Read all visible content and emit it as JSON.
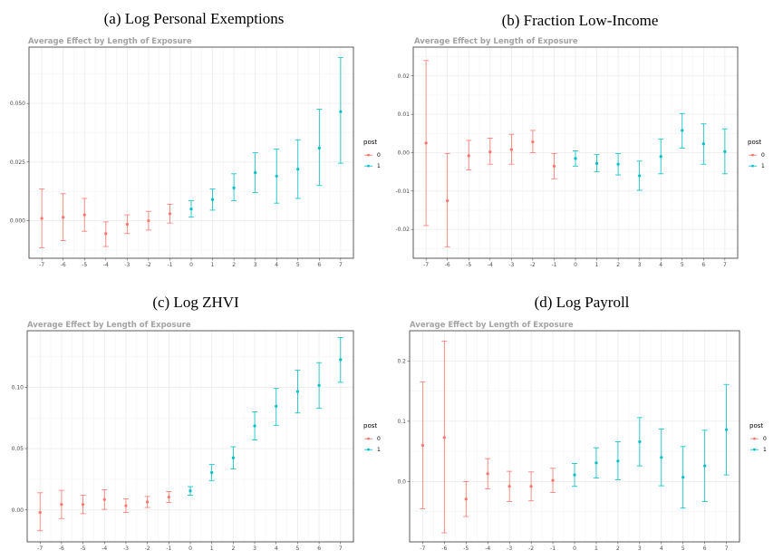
{
  "colors": {
    "pre": "#F8766D",
    "post": "#00BFC4"
  },
  "chart_data": [
    {
      "type": "scatter",
      "title": "(a)  Log Personal Exemptions",
      "subtitle": "Average Effect by Length of Exposure",
      "legend": {
        "title": "post",
        "labels": [
          "0",
          "1"
        ],
        "position": "right"
      },
      "grid": true,
      "x": [
        -7,
        -6,
        -5,
        -4,
        -3,
        -2,
        -1,
        0,
        1,
        2,
        3,
        4,
        5,
        6,
        7
      ],
      "xlim": [
        -7.6,
        7.6
      ],
      "ylim": [
        -0.016,
        0.074
      ],
      "yticks": [
        0.0,
        0.025,
        0.05
      ],
      "ytick_labels": [
        "0.000",
        "0.025",
        "0.050"
      ],
      "series": [
        {
          "name": "0",
          "x": [
            -7,
            -6,
            -5,
            -4,
            -3,
            -2,
            -1
          ],
          "y": [
            0.001,
            0.0015,
            0.0025,
            -0.0055,
            -0.0015,
            0.0,
            0.003
          ],
          "lo": [
            -0.0115,
            -0.0085,
            -0.0045,
            -0.011,
            -0.0055,
            -0.004,
            -0.001
          ],
          "hi": [
            0.0135,
            0.0115,
            0.0095,
            -0.0005,
            0.0025,
            0.004,
            0.007
          ]
        },
        {
          "name": "1",
          "x": [
            0,
            1,
            2,
            3,
            4,
            5,
            6,
            7
          ],
          "y": [
            0.005,
            0.009,
            0.014,
            0.0205,
            0.019,
            0.022,
            0.031,
            0.0465
          ],
          "lo": [
            0.0015,
            0.0045,
            0.0085,
            0.012,
            0.0075,
            0.0095,
            0.015,
            0.0245
          ],
          "hi": [
            0.0085,
            0.0135,
            0.02,
            0.029,
            0.0305,
            0.0345,
            0.0475,
            0.0695
          ]
        }
      ]
    },
    {
      "type": "scatter",
      "title": "(b)  Fraction Low-Income",
      "subtitle": "Average Effect by Length of Exposure",
      "legend": {
        "title": "post",
        "labels": [
          "0",
          "1"
        ],
        "position": "right"
      },
      "grid": true,
      "x": [
        -7,
        -6,
        -5,
        -4,
        -3,
        -2,
        -1,
        0,
        1,
        2,
        3,
        4,
        5,
        6,
        7
      ],
      "xlim": [
        -7.6,
        7.6
      ],
      "ylim": [
        -0.0275,
        0.0275
      ],
      "yticks": [
        -0.02,
        -0.01,
        0.0,
        0.01,
        0.02
      ],
      "ytick_labels": [
        "-0.02",
        "-0.01",
        "0.00",
        "0.01",
        "0.02"
      ],
      "series": [
        {
          "name": "0",
          "x": [
            -7,
            -6,
            -5,
            -4,
            -3,
            -2,
            -1
          ],
          "y": [
            0.0025,
            -0.0125,
            -0.0008,
            0.0002,
            0.0008,
            0.0028,
            -0.0035
          ],
          "lo": [
            -0.019,
            -0.0245,
            -0.0045,
            -0.003,
            -0.003,
            0.0,
            -0.0068
          ],
          "hi": [
            0.024,
            -0.0002,
            0.0032,
            0.0038,
            0.0048,
            0.0058,
            -0.0002
          ]
        },
        {
          "name": "1",
          "x": [
            0,
            1,
            2,
            3,
            4,
            5,
            6,
            7
          ],
          "y": [
            -0.0015,
            -0.0028,
            -0.003,
            -0.006,
            -0.001,
            0.0058,
            0.0023,
            0.0003
          ],
          "lo": [
            -0.0035,
            -0.005,
            -0.0058,
            -0.0098,
            -0.0055,
            0.0012,
            -0.003,
            -0.0055
          ],
          "hi": [
            0.0005,
            -0.0005,
            -0.0002,
            -0.0022,
            0.0035,
            0.0102,
            0.0075,
            0.0062
          ]
        }
      ]
    },
    {
      "type": "scatter",
      "title": "(c)  Log ZHVI",
      "subtitle": "Average Effect by Length of Exposure",
      "legend": {
        "title": "post",
        "labels": [
          "0",
          "1"
        ],
        "position": "right"
      },
      "grid": true,
      "x": [
        -7,
        -6,
        -5,
        -4,
        -3,
        -2,
        -1,
        0,
        1,
        2,
        3,
        4,
        5,
        6,
        7
      ],
      "xlim": [
        -7.6,
        7.6
      ],
      "ylim": [
        -0.026,
        0.146
      ],
      "yticks": [
        0.0,
        0.05,
        0.1
      ],
      "ytick_labels": [
        "0.00",
        "0.05",
        "0.10"
      ],
      "series": [
        {
          "name": "0",
          "x": [
            -7,
            -6,
            -5,
            -4,
            -3,
            -2,
            -1
          ],
          "y": [
            -0.002,
            0.0045,
            0.0045,
            0.0085,
            0.0035,
            0.0065,
            0.0105
          ],
          "lo": [
            -0.017,
            -0.007,
            -0.003,
            0.0005,
            -0.002,
            0.002,
            0.006
          ],
          "hi": [
            0.014,
            0.016,
            0.012,
            0.0165,
            0.009,
            0.011,
            0.015
          ]
        },
        {
          "name": "1",
          "x": [
            0,
            1,
            2,
            3,
            4,
            5,
            6,
            7
          ],
          "y": [
            0.0155,
            0.0305,
            0.0425,
            0.0685,
            0.0845,
            0.0965,
            0.1015,
            0.1225
          ],
          "lo": [
            0.012,
            0.024,
            0.0335,
            0.057,
            0.069,
            0.079,
            0.083,
            0.104
          ],
          "hi": [
            0.019,
            0.037,
            0.0515,
            0.08,
            0.099,
            0.114,
            0.12,
            0.1405
          ]
        }
      ]
    },
    {
      "type": "scatter",
      "title": "(d)  Log Payroll",
      "subtitle": "Average Effect by Length of Exposure",
      "legend": {
        "title": "post",
        "labels": [
          "0",
          "1"
        ],
        "position": "right"
      },
      "grid": true,
      "x": [
        -7,
        -6,
        -5,
        -4,
        -3,
        -2,
        -1,
        0,
        1,
        2,
        3,
        4,
        5,
        6,
        7
      ],
      "xlim": [
        -7.6,
        7.6
      ],
      "ylim": [
        -0.1,
        0.25
      ],
      "yticks": [
        0.0,
        0.1,
        0.2
      ],
      "ytick_labels": [
        "0.0",
        "0.1",
        "0.2"
      ],
      "series": [
        {
          "name": "0",
          "x": [
            -7,
            -6,
            -5,
            -4,
            -3,
            -2,
            -1
          ],
          "y": [
            0.06,
            0.073,
            -0.029,
            0.013,
            -0.008,
            -0.008,
            0.002
          ],
          "lo": [
            -0.045,
            -0.085,
            -0.058,
            -0.012,
            -0.033,
            -0.032,
            -0.018
          ],
          "hi": [
            0.165,
            0.233,
            0.0,
            0.038,
            0.017,
            0.016,
            0.022
          ]
        },
        {
          "name": "1",
          "x": [
            0,
            1,
            2,
            3,
            4,
            5,
            6,
            7
          ],
          "y": [
            0.011,
            0.031,
            0.034,
            0.066,
            0.04,
            0.007,
            0.026,
            0.086
          ],
          "lo": [
            -0.008,
            0.006,
            0.003,
            0.026,
            -0.007,
            -0.044,
            -0.033,
            0.011
          ],
          "hi": [
            0.03,
            0.056,
            0.066,
            0.106,
            0.087,
            0.058,
            0.085,
            0.161
          ]
        }
      ]
    }
  ]
}
